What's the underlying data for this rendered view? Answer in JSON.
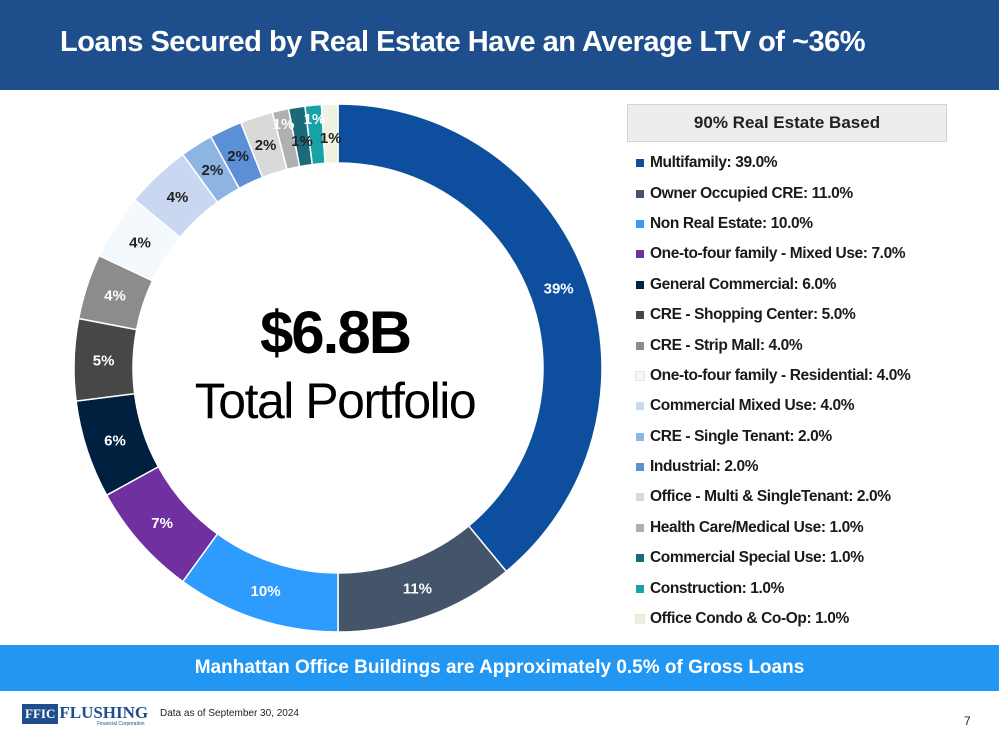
{
  "header": {
    "title": "Loans Secured by Real Estate Have an Average LTV of ~36%"
  },
  "legend_title": "90% Real Estate Based",
  "center": {
    "amount": "$6.8B",
    "label": "Total Portfolio"
  },
  "banner": "Manhattan Office Buildings are Approximately 0.5% of Gross Loans",
  "footer": {
    "logo_box": "FFIC",
    "logo_text": "FLUSHING",
    "logo_sub": "Financial Corporation",
    "note": "Data as of September 30, 2024",
    "page": "7"
  },
  "chart_data": {
    "type": "pie",
    "donut": true,
    "categories": [
      "Multifamily: 39.0%",
      "Owner Occupied CRE: 11.0%",
      "Non Real Estate: 10.0%",
      "One-to-four family - Mixed Use: 7.0%",
      "General Commercial: 6.0%",
      "CRE - Shopping Center: 5.0%",
      "CRE - Strip Mall: 4.0%",
      "One-to-four family - Residential: 4.0%",
      "Commercial Mixed Use: 4.0%",
      "CRE - Single Tenant: 2.0%",
      "Industrial: 2.0%",
      "Office - Multi & SingleTenant: 2.0%",
      "Health Care/Medical Use: 1.0%",
      "Commercial Special Use: 1.0%",
      "Construction: 1.0%",
      "Office Condo & Co-Op: 1.0%"
    ],
    "values": [
      39,
      11,
      10,
      7,
      6,
      5,
      4,
      4,
      4,
      2,
      2,
      2,
      1,
      1,
      1,
      1
    ],
    "data_labels": [
      "39%",
      "11%",
      "10%",
      "7%",
      "6%",
      "5%",
      "4%",
      "4%",
      "4%",
      "2%",
      "2%",
      "2%",
      "1%",
      "1%",
      "1%",
      "1%"
    ],
    "colors": [
      "#0d4f9e",
      "#44546a",
      "#2e9bff",
      "#7030a0",
      "#002040",
      "#474747",
      "#8c8c8c",
      "#f4f9fd",
      "#c9d8f0",
      "#8eb4e3",
      "#5b8fd6",
      "#d9d9d9",
      "#b0b0b0",
      "#1b6a7a",
      "#17a2a8",
      "#eef2de"
    ],
    "label_colors": [
      "#ffffff",
      "#ffffff",
      "#ffffff",
      "#ffffff",
      "#ffffff",
      "#ffffff",
      "#ffffff",
      "#222222",
      "#222222",
      "#222222",
      "#222222",
      "#222222",
      "#ffffff",
      "#222222",
      "#ffffff",
      "#222222"
    ],
    "start_angle_deg": 0,
    "direction": "clockwise",
    "legend_position": "right"
  }
}
